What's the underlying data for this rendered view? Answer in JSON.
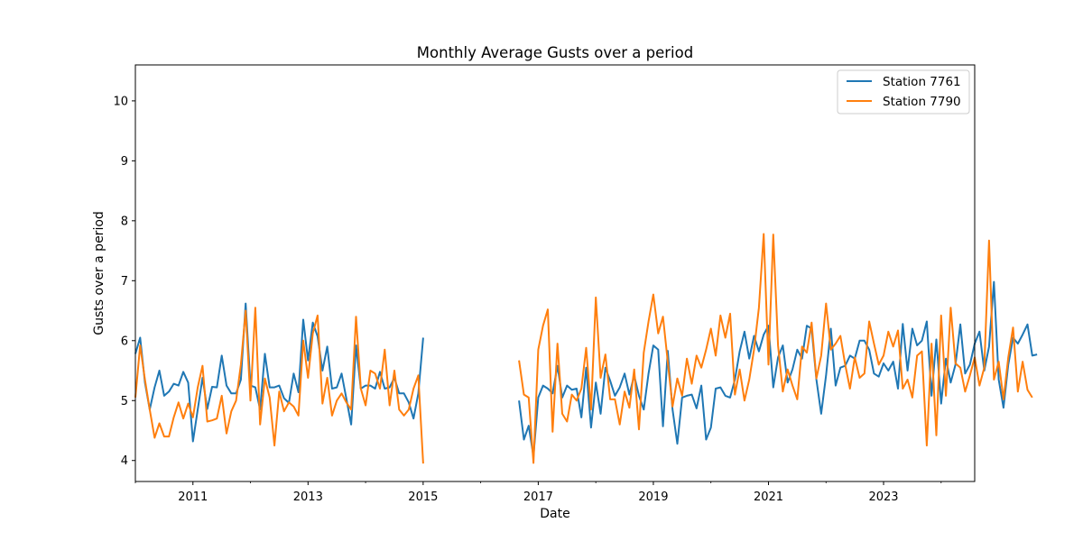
{
  "chart_data": {
    "type": "line",
    "title": "Monthly Average Gusts over a period",
    "xlabel": "Date",
    "ylabel": "Gusts over a period",
    "x_start": "2010-01",
    "x_end": "2024-08",
    "xlim": [
      "2010-01",
      "2024-08"
    ],
    "ylim": [
      3.65,
      10.6
    ],
    "yticks": [
      4,
      5,
      6,
      7,
      8,
      9,
      10
    ],
    "xticks": [
      {
        "date": "2011-01",
        "label": "2011"
      },
      {
        "date": "2013-01",
        "label": "2013"
      },
      {
        "date": "2015-01",
        "label": "2015"
      },
      {
        "date": "2017-01",
        "label": "2017"
      },
      {
        "date": "2019-01",
        "label": "2019"
      },
      {
        "date": "2021-01",
        "label": "2021"
      },
      {
        "date": "2023-01",
        "label": "2023"
      }
    ],
    "grid": false,
    "legend_position": "top-right",
    "series": [
      {
        "name": "Station 7761",
        "color": "#1f77b4",
        "values": [
          5.78,
          6.05,
          5.3,
          4.85,
          5.22,
          5.5,
          5.08,
          5.15,
          5.28,
          5.25,
          5.48,
          5.3,
          4.32,
          4.85,
          5.38,
          4.86,
          5.23,
          5.22,
          5.75,
          5.25,
          5.12,
          5.12,
          5.35,
          6.62,
          5.25,
          5.22,
          4.85,
          5.78,
          5.22,
          5.22,
          5.25,
          5.04,
          4.96,
          5.45,
          5.14,
          6.35,
          5.67,
          6.3,
          6.07,
          5.5,
          5.9,
          5.2,
          5.22,
          5.45,
          5.03,
          4.6,
          5.92,
          5.2,
          5.25,
          5.25,
          5.2,
          5.48,
          5.2,
          5.22,
          5.38,
          5.12,
          5.12,
          4.97,
          4.7,
          5.12,
          6.05,
          null,
          null,
          null,
          null,
          null,
          null,
          null,
          null,
          null,
          null,
          null,
          null,
          null,
          null,
          null,
          null,
          null,
          null,
          null,
          5.0,
          4.35,
          4.58,
          4.07,
          5.05,
          5.25,
          5.2,
          5.12,
          5.58,
          5.05,
          5.25,
          5.18,
          5.2,
          4.72,
          5.55,
          4.55,
          5.3,
          4.78,
          5.55,
          5.33,
          5.08,
          5.22,
          5.45,
          5.1,
          5.42,
          5.08,
          4.85,
          5.45,
          5.92,
          5.85,
          4.57,
          5.83,
          4.85,
          4.28,
          5.05,
          5.08,
          5.1,
          4.87,
          5.25,
          4.35,
          4.55,
          5.2,
          5.22,
          5.08,
          5.05,
          5.35,
          5.82,
          6.15,
          5.7,
          6.08,
          5.82,
          6.1,
          6.25,
          5.22,
          5.72,
          5.92,
          5.3,
          5.52,
          5.85,
          5.7,
          6.25,
          6.2,
          5.35,
          4.78,
          5.42,
          6.2,
          5.25,
          5.55,
          5.58,
          5.75,
          5.7,
          6.0,
          6.0,
          5.85,
          5.45,
          5.4,
          5.62,
          5.5,
          5.65,
          5.2,
          6.28,
          5.5,
          6.2,
          5.92,
          6.0,
          6.32,
          5.08,
          6.02,
          4.95,
          5.7,
          5.3,
          5.6,
          6.27,
          5.45,
          5.6,
          5.95,
          6.15,
          5.5,
          5.9,
          6.98,
          5.35,
          4.88,
          5.6,
          6.05,
          5.95,
          6.1,
          6.27,
          5.75,
          5.77
        ]
      },
      {
        "name": "Station 7790",
        "color": "#ff7f0e",
        "values": [
          5.05,
          5.92,
          5.35,
          4.85,
          4.38,
          4.62,
          4.4,
          4.4,
          4.72,
          4.97,
          4.7,
          4.95,
          4.72,
          5.22,
          5.58,
          4.65,
          4.67,
          4.7,
          5.08,
          4.45,
          4.82,
          5.0,
          5.6,
          6.5,
          5.0,
          6.55,
          4.6,
          5.37,
          5.05,
          4.25,
          5.15,
          4.82,
          4.97,
          4.9,
          4.75,
          6.0,
          5.38,
          6.12,
          6.42,
          4.95,
          5.38,
          4.75,
          5.0,
          5.12,
          4.97,
          4.85,
          6.4,
          5.2,
          4.92,
          5.5,
          5.45,
          5.2,
          5.85,
          4.92,
          5.5,
          4.85,
          4.75,
          4.85,
          5.2,
          5.42,
          3.95,
          null,
          null,
          null,
          null,
          null,
          null,
          null,
          null,
          null,
          null,
          null,
          null,
          null,
          null,
          null,
          null,
          null,
          null,
          null,
          5.67,
          5.1,
          5.05,
          3.96,
          5.85,
          6.25,
          6.52,
          4.48,
          5.95,
          4.78,
          4.65,
          5.1,
          5.0,
          5.2,
          5.88,
          4.85,
          6.72,
          5.38,
          5.77,
          5.02,
          5.02,
          4.6,
          5.15,
          4.88,
          5.52,
          4.52,
          5.8,
          6.32,
          6.77,
          6.12,
          6.4,
          5.65,
          4.9,
          5.37,
          5.08,
          5.7,
          5.28,
          5.75,
          5.55,
          5.85,
          6.2,
          5.75,
          6.42,
          6.05,
          6.45,
          5.1,
          5.52,
          5.0,
          5.35,
          5.85,
          6.55,
          7.78,
          5.6,
          7.77,
          5.92,
          5.15,
          5.52,
          5.25,
          5.02,
          5.9,
          5.8,
          6.3,
          5.37,
          5.75,
          6.62,
          5.85,
          5.95,
          6.08,
          5.6,
          5.2,
          5.72,
          5.38,
          5.45,
          6.32,
          5.95,
          5.6,
          5.75,
          6.15,
          5.9,
          6.17,
          5.2,
          5.35,
          5.05,
          5.75,
          5.82,
          4.25,
          5.95,
          4.42,
          6.42,
          5.08,
          6.55,
          5.62,
          5.55,
          5.15,
          5.42,
          5.72,
          5.25,
          5.55,
          7.67,
          5.35,
          5.65,
          5.02,
          5.72,
          6.22,
          5.15,
          5.65,
          5.18,
          5.05
        ]
      }
    ]
  }
}
